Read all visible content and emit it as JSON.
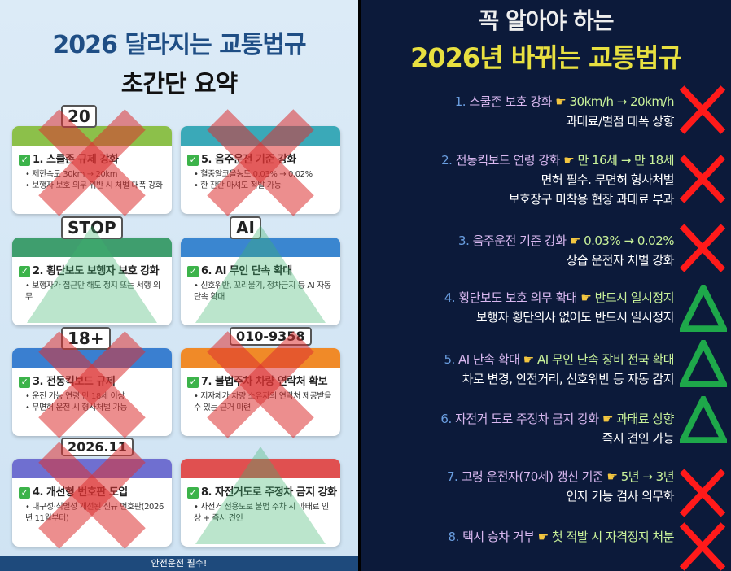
{
  "left": {
    "title_line1": "2026 달라지는 교통법규",
    "title_line2": "초간단 요약",
    "check_glyph": "✓",
    "cards": [
      {
        "title": "1. 스쿨존 규제 강화",
        "bullets": [
          "• 제한속도 30km → 20km",
          "• 보행자 보호 의무 위반 시 처벌 대폭 강화"
        ],
        "color": "#8cc04a",
        "mark": "x",
        "icon_text": "20"
      },
      {
        "title": "5. 음주운전 기준 강화",
        "bullets": [
          "• 혈중알코올농도 0.03% → 0.02%",
          "• 한 잔만 마셔도 적발 가능"
        ],
        "color": "#3aa9b8",
        "mark": "x"
      },
      {
        "title": "2. 횡단보도 보행자 보호 강화",
        "bullets": [
          "• 보행자가 접근만 해도 정지 또는 서행 의무"
        ],
        "color": "#3f9e6e",
        "mark": "triangle",
        "icon_text": "STOP"
      },
      {
        "title": "6. AI 무인 단속 확대",
        "bullets": [
          "• 신호위반, 꼬리물기, 정차금지 등 AI 자동단속 확대"
        ],
        "color": "#3a86d0",
        "mark": "triangle",
        "icon_text": "AI"
      },
      {
        "title": "3. 전동킥보드 규제",
        "bullets": [
          "• 운전 가능 연령 만 18세 이상",
          "• 무면허 운전 시 형사처벌 가능"
        ],
        "color": "#3a7fd0",
        "mark": "x",
        "icon_text": "18+"
      },
      {
        "title": "7. 불법주차 차량 연락처 확보",
        "bullets": [
          "• 지자체가 차량 소유자의 연락처 제공받을 수 있는 근거 마련"
        ],
        "color": "#f08a28",
        "mark": "x",
        "icon_text": "010-9358"
      },
      {
        "title": "4. 개선형 번호판 도입",
        "bullets": [
          "• 내구성·식별성 개선된 신규 번호판(2026년 11월부터)"
        ],
        "color": "#6f6fd0",
        "mark": "x",
        "icon_text": "2026.11"
      },
      {
        "title": "8. 자전거도로 주정차 금지 강화",
        "bullets": [
          "• 자전거 전용도로 불법 주차 시 과태료 인상 + 즉시 견인"
        ],
        "color": "#e05050",
        "mark": "triangle"
      }
    ],
    "footer": "안전운전 필수!"
  },
  "right": {
    "title_line1": "꼭 알아야 하는",
    "title_line2": "2026년 바뀌는 교통법규",
    "hand_glyph": "☛",
    "items": [
      {
        "num": "1.",
        "title": "스쿨존 보호 강화",
        "highlight": "30km/h → 20km/h",
        "details": [
          "과태료/벌점 대폭 상향"
        ],
        "mark": "x"
      },
      {
        "num": "2.",
        "title": "전동킥보드 연령 강화",
        "highlight": "만 16세 → 만 18세",
        "details": [
          "면허 필수. 무면허 형사처벌",
          "보호장구 미착용 현장 과태료 부과"
        ],
        "mark": "x"
      },
      {
        "num": "3.",
        "title": "음주운전 기준 강화",
        "highlight": "0.03% → 0.02%",
        "details": [
          "상습 운전자 처벌 강화"
        ],
        "mark": "x"
      },
      {
        "num": "4.",
        "title": "횡단보도 보호 의무 확대",
        "highlight": "반드시 일시정지",
        "details": [
          "보행자 횡단의사 없어도 반드시 일시정지"
        ],
        "mark": "triangle"
      },
      {
        "num": "5.",
        "title": "AI 단속 확대",
        "highlight": "AI 무인 단속 장비 전국 확대",
        "details": [
          "차로 변경, 안전거리, 신호위반 등 자동 감지"
        ],
        "mark": "triangle"
      },
      {
        "num": "6.",
        "title": "자전거 도로 주정차 금지 강화",
        "highlight": "과태료 상향",
        "details": [
          "즉시 견인 가능"
        ],
        "mark": "triangle"
      },
      {
        "num": "7.",
        "title": "고령 운전자(70세) 갱신 기준",
        "highlight": "5년 → 3년",
        "details": [
          "인지 기능 검사 의무화"
        ],
        "mark": "x"
      },
      {
        "num": "8.",
        "title": "택시 승차 거부",
        "highlight": "첫 적발 시 자격정지 처분",
        "details": [],
        "mark": "x"
      }
    ]
  },
  "colors": {
    "left_bg": "#d6e8f5",
    "right_bg": "#0c1a3a",
    "title_blue": "#1f4e85",
    "title_yellow": "#e8e040",
    "x_red": "#ff1a1a",
    "triangle_green": "#1ea84a"
  }
}
